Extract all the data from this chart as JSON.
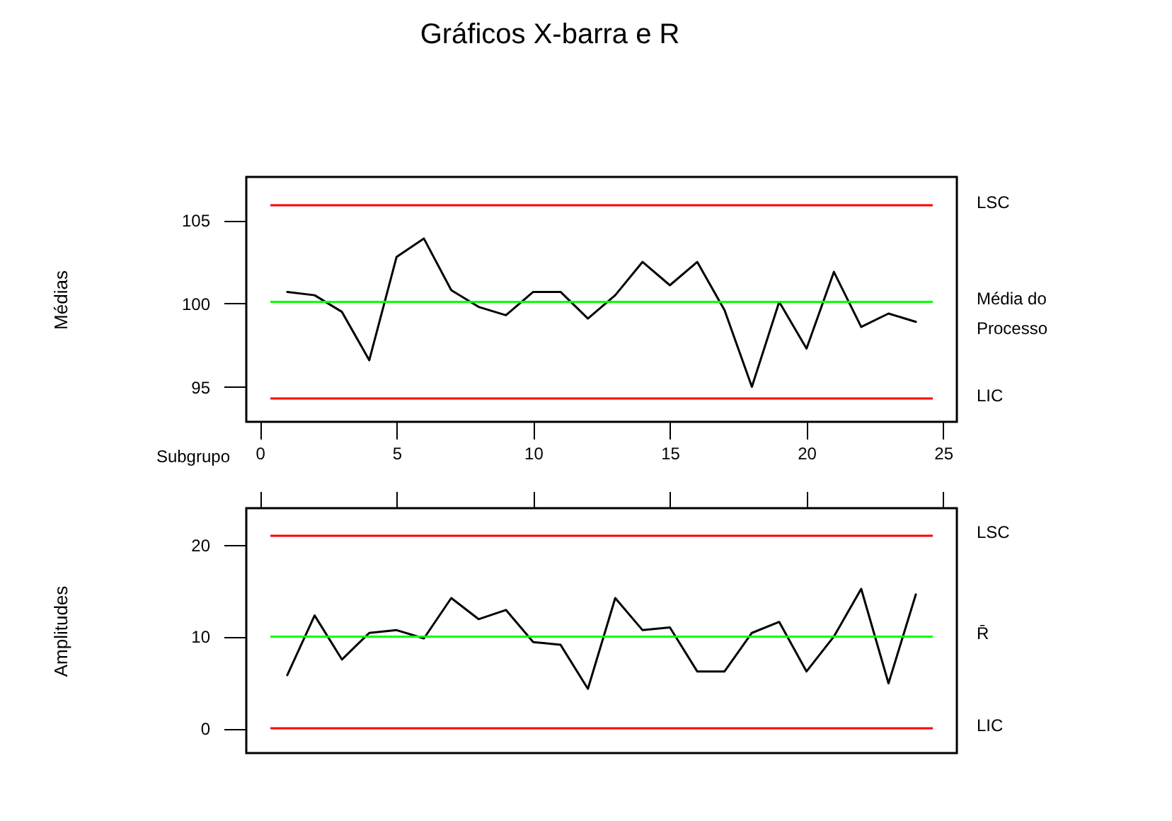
{
  "chart_data": [
    {
      "type": "line",
      "title": "Gráficos X-barra e R",
      "xlabel": "Subgrupo",
      "ylabel": "Médias",
      "x": [
        1,
        2,
        3,
        4,
        5,
        6,
        7,
        8,
        9,
        10,
        11,
        12,
        13,
        14,
        15,
        16,
        17,
        18,
        19,
        20,
        21,
        22,
        23,
        24
      ],
      "series": [
        {
          "color": "#000000",
          "values": [
            100.7,
            100.5,
            99.5,
            96.6,
            102.8,
            103.9,
            100.8,
            99.8,
            99.3,
            100.7,
            100.7,
            99.1,
            100.5,
            102.5,
            101.1,
            102.5,
            99.6,
            95.0,
            100.1,
            97.3,
            101.9,
            98.6,
            99.4,
            98.9
          ]
        }
      ],
      "xlim": [
        -0.5,
        25.5
      ],
      "xticks": [
        0,
        5,
        10,
        15,
        20,
        25
      ],
      "ylim": [
        92.9,
        107.6
      ],
      "yticks": [
        95,
        100,
        105
      ],
      "ref_lines": [
        {
          "axis": "y",
          "value": 105.9,
          "label": "LSC",
          "color": "#ff0000"
        },
        {
          "axis": "y",
          "value": 100.1,
          "label": "Média do Processo",
          "color": "#00ff00"
        },
        {
          "axis": "y",
          "value": 94.3,
          "label": "LIC",
          "color": "#ff0000"
        }
      ]
    },
    {
      "type": "line",
      "ylabel": "Amplitudes",
      "x": [
        1,
        2,
        3,
        4,
        5,
        6,
        7,
        8,
        9,
        10,
        11,
        12,
        13,
        14,
        15,
        16,
        17,
        18,
        19,
        20,
        21,
        22,
        23,
        24
      ],
      "series": [
        {
          "color": "#000000",
          "values": [
            5.8,
            12.3,
            7.5,
            10.4,
            10.7,
            9.8,
            14.2,
            11.9,
            12.9,
            9.4,
            9.1,
            4.3,
            14.2,
            10.7,
            11.0,
            6.2,
            6.2,
            10.4,
            11.6,
            6.2,
            10.0,
            15.2,
            4.9,
            14.6
          ]
        }
      ],
      "xlim": [
        -0.5,
        25.5
      ],
      "xticks": [
        0,
        5,
        10,
        15,
        20,
        25
      ],
      "tick_labels": "y",
      "ylim": [
        -2.7,
        24.0
      ],
      "yticks": [
        0,
        10,
        20
      ],
      "ref_lines": [
        {
          "axis": "y",
          "value": 21.0,
          "label": "LSC",
          "color": "#ff0000"
        },
        {
          "axis": "y",
          "value": 10.0,
          "label": "R̄",
          "color": "#00ff00"
        },
        {
          "axis": "y",
          "value": 0,
          "label": "LIC",
          "color": "#ff0000"
        }
      ]
    }
  ]
}
